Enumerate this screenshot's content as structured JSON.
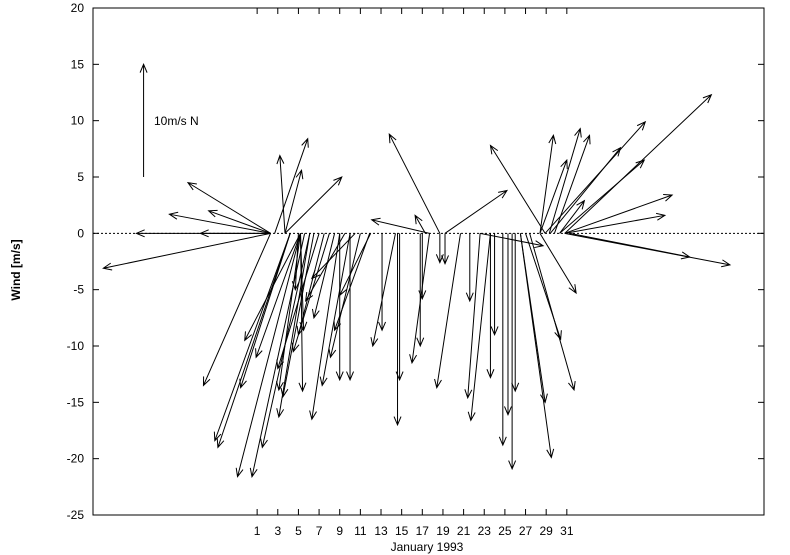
{
  "chart_data": {
    "type": "quiver",
    "xlabel": "January 1993",
    "ylabel": "Wind [m/s]",
    "xlim": [
      -14.9,
      50.1
    ],
    "ylim": [
      -25,
      20
    ],
    "xticks": [
      1,
      3,
      5,
      7,
      9,
      11,
      13,
      15,
      17,
      19,
      21,
      23,
      25,
      27,
      29,
      31
    ],
    "yticks": [
      -25,
      -20,
      -15,
      -10,
      -5,
      0,
      5,
      10,
      15,
      20
    ],
    "color": "#000000",
    "key_arrow": {
      "x": -10,
      "y": 5,
      "length": 10,
      "label": "10m/s N"
    },
    "x": [
      2.3,
      2.3,
      2.3,
      2.3,
      2.3,
      2.3,
      2.3,
      4.2,
      4.2,
      5.2,
      5.6,
      6.1,
      5.2,
      4.2,
      5.2,
      3.7,
      2.7,
      3.7,
      3.7,
      5.2,
      6.1,
      5.2,
      9.0,
      10.0,
      11.0,
      9.0,
      10.0,
      11.9,
      5.2,
      5.0,
      7.0,
      8.0,
      6.5,
      7.5,
      8.5,
      9.5,
      10.5,
      12.0,
      18.7,
      17.7,
      14.6,
      14.8,
      13.1,
      14.4,
      17.7,
      16.8,
      17.0,
      17.3,
      18.7,
      20.7,
      19.2,
      19.2,
      28.9,
      22.6,
      23.6,
      21.6,
      23.6,
      24.8,
      25.7,
      25.3,
      26.0,
      26.5,
      26.5,
      27.0,
      27.4,
      28.4,
      22.6,
      30.8,
      30.8,
      31.3,
      30.8,
      30.8,
      30.3,
      28.9,
      29.4,
      29.3,
      29.8,
      30.3,
      28.4,
      28.4,
      24.0
    ],
    "u": [
      -16.2,
      -13.0,
      -6.8,
      -8.0,
      -9.8,
      -6.0,
      -6.5,
      -7.3,
      -7.0,
      -6.1,
      -5.1,
      -4.6,
      -5.4,
      -4.8,
      -4.3,
      -0.5,
      3.2,
      1.6,
      5.5,
      -2.1,
      -3.0,
      0.2,
      -2.7,
      -2.7,
      -2.9,
      0.0,
      0.0,
      -3.4,
      0.3,
      -0.3,
      -4.0,
      -3.5,
      -3.0,
      -2.5,
      -2.0,
      -3.8,
      -4.2,
      -3.0,
      -4.9,
      -5.6,
      0.0,
      0.0,
      0.0,
      -2.2,
      -1.7,
      0.0,
      0.0,
      -1.0,
      0.0,
      -2.3,
      0.0,
      6.0,
      -5.3,
      -1.2,
      -1.9,
      0.0,
      0.0,
      0.0,
      0.0,
      0.0,
      0.0,
      2.4,
      3.0,
      3.4,
      4.3,
      3.5,
      6.1,
      14.2,
      16.0,
      11.6,
      10.4,
      9.7,
      8.2,
      9.7,
      6.8,
      3.0,
      3.4,
      2.4,
      2.6,
      1.3,
      0.0
    ],
    "v": [
      -3.1,
      0.0,
      0.0,
      4.5,
      1.7,
      2.0,
      -13.5,
      -18.4,
      -19.0,
      -21.6,
      -21.6,
      -19.0,
      -9.5,
      -13.7,
      -11.0,
      6.9,
      8.4,
      5.6,
      5.0,
      -13.9,
      -16.3,
      -14.0,
      -16.5,
      -13.5,
      -11.0,
      -13.0,
      -13.0,
      -8.6,
      -8.6,
      -5.0,
      -12.0,
      -10.5,
      -14.5,
      -9.0,
      -7.5,
      -6.0,
      -4.0,
      -5.5,
      8.8,
      1.2,
      -17.0,
      -13.0,
      -8.6,
      -10.0,
      -11.5,
      -10.0,
      -5.8,
      1.6,
      -2.6,
      -13.7,
      -2.7,
      3.8,
      7.8,
      -14.6,
      -16.6,
      -6.0,
      -12.8,
      -18.8,
      -20.9,
      -16.1,
      -14.0,
      -15.0,
      -19.9,
      -9.4,
      -13.9,
      -5.3,
      -1.1,
      12.3,
      -2.8,
      -2.1,
      3.4,
      1.6,
      6.5,
      9.9,
      7.6,
      9.3,
      8.7,
      2.9,
      6.5,
      8.7,
      -9.0
    ]
  }
}
